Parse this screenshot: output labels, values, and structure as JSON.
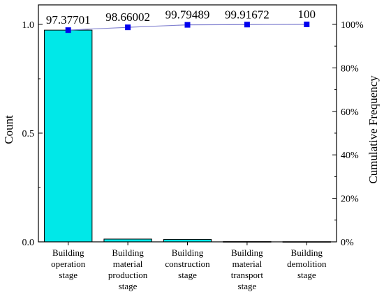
{
  "chart_data": {
    "type": "bar",
    "subtype": "pareto",
    "categories": [
      [
        "Building",
        "operation",
        "stage"
      ],
      [
        "Building",
        "material",
        "production",
        "stage"
      ],
      [
        "Building",
        "construction",
        "stage"
      ],
      [
        "Building",
        "material",
        "transport",
        "stage"
      ],
      [
        "Building",
        "demolition",
        "stage"
      ]
    ],
    "series": [
      {
        "values": [
          0.9738,
          0.0128,
          0.0114,
          0.0012,
          0.0008
        ]
      },
      {
        "values": [
          97.37701,
          98.66002,
          99.79489,
          99.91672,
          100
        ]
      }
    ],
    "data_labels": [
      "97.37701",
      "98.66002",
      "99.79489",
      "99.91672",
      "100"
    ],
    "ylabel": "Count",
    "y2label": "Cumulative Frequency",
    "ylim": [
      0,
      1.0
    ],
    "y2lim": [
      0,
      100
    ],
    "yticks": [
      "0.0",
      "0.5",
      "1.0"
    ],
    "y2ticks": [
      "0%",
      "20%",
      "40%",
      "60%",
      "80%",
      "100%"
    ],
    "grid": false,
    "colors": {
      "bar_fill": "#00e8e8",
      "bar_stroke": "#000000",
      "line": "#8080d0",
      "marker": "#0000ee"
    }
  }
}
